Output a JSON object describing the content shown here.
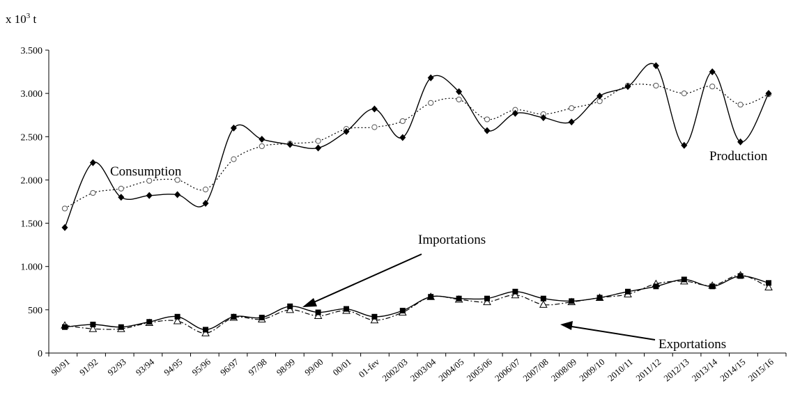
{
  "chart_data": {
    "type": "line",
    "y_unit_label": {
      "base": "x 10",
      "exp": "3",
      "suffix": " t"
    },
    "categories": [
      "90/91",
      "91/92",
      "92/93",
      "93/94",
      "94/95",
      "95/96",
      "96/97",
      "97/98",
      "98/99",
      "99/00",
      "00/01",
      "01-fev",
      "2002/03",
      "2003/04",
      "2004/05",
      "2005/06",
      "2006/07",
      "2007/08",
      "2008/09",
      "2009/10",
      "2010/11",
      "2011/12",
      "2012/13",
      "2013/14",
      "2014/15",
      "2015/16"
    ],
    "ylim": [
      0,
      3500
    ],
    "yticks": [
      0,
      500,
      1000,
      1500,
      2000,
      2500,
      3000,
      3500
    ],
    "ytick_labels": [
      "0",
      "500",
      "1.000",
      "1.500",
      "2.000",
      "2.500",
      "3.000",
      "3.500"
    ],
    "series": [
      {
        "name": "Production",
        "style": "solid",
        "marker": "diamond",
        "values": [
          1450,
          2200,
          1800,
          1820,
          1830,
          1730,
          2600,
          2470,
          2410,
          2370,
          2560,
          2820,
          2490,
          3180,
          3020,
          2570,
          2770,
          2720,
          2670,
          2970,
          3080,
          3320,
          2400,
          3250,
          2440,
          3000
        ]
      },
      {
        "name": "Consumption",
        "style": "dotted",
        "marker": "circle",
        "values": [
          1670,
          1850,
          1900,
          1990,
          2000,
          1890,
          2240,
          2390,
          2420,
          2450,
          2590,
          2610,
          2680,
          2890,
          2930,
          2700,
          2810,
          2760,
          2830,
          2910,
          3090,
          3090,
          3000,
          3080,
          2870,
          2990
        ]
      },
      {
        "name": "Importations",
        "style": "solid",
        "marker": "square",
        "values": [
          300,
          330,
          300,
          360,
          420,
          270,
          420,
          410,
          540,
          470,
          510,
          420,
          490,
          650,
          630,
          630,
          710,
          630,
          600,
          640,
          710,
          770,
          850,
          770,
          890,
          810
        ]
      },
      {
        "name": "Exportations",
        "style": "dashdot",
        "marker": "triangle",
        "values": [
          320,
          280,
          280,
          350,
          370,
          230,
          410,
          390,
          500,
          430,
          490,
          380,
          470,
          650,
          620,
          590,
          670,
          560,
          590,
          640,
          680,
          800,
          830,
          780,
          900,
          760
        ]
      }
    ],
    "annotations": [
      {
        "text": "Consumption"
      },
      {
        "text": "Production"
      },
      {
        "text": "Importations"
      },
      {
        "text": "Exportations"
      }
    ],
    "grid": false,
    "legend": "none"
  }
}
